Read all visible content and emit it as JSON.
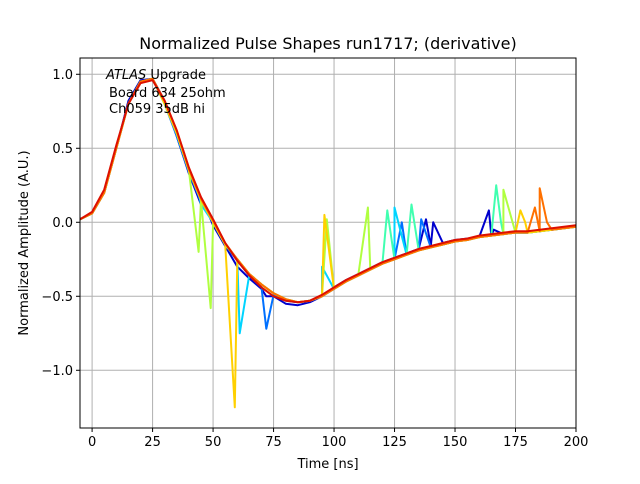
{
  "chart_data": {
    "type": "line",
    "title": "Normalized Pulse Shapes run1717; (derivative)",
    "xlabel": "Time [ns]",
    "ylabel": "Normalized Amplitude (A.U.)",
    "xlim": [
      -5,
      200
    ],
    "ylim": [
      -1.39,
      1.11
    ],
    "grid": true,
    "xticks": [
      0,
      25,
      50,
      75,
      100,
      125,
      150,
      175,
      200
    ],
    "xtick_labels": [
      "0",
      "25",
      "50",
      "75",
      "100",
      "125",
      "150",
      "175",
      "200"
    ],
    "yticks": [
      1.0,
      0.5,
      0.0,
      -0.5,
      -1.0
    ],
    "ytick_labels": [
      "1.0",
      "0.5",
      "0.0",
      "−0.5",
      "−1.0"
    ],
    "annotation": {
      "atlas": "ATLAS",
      "line1": " Upgrade",
      "line2": "Board 634 25ohm",
      "line3": "Ch059 35dB hi"
    },
    "x": [
      -5,
      0,
      5,
      10,
      15,
      20,
      25,
      30,
      35,
      40,
      45,
      50,
      55,
      60,
      65,
      70,
      75,
      80,
      85,
      90,
      95,
      100,
      105,
      110,
      115,
      120,
      125,
      130,
      135,
      140,
      145,
      150,
      155,
      160,
      165,
      170,
      175,
      180,
      185,
      190,
      195,
      200
    ],
    "series": [
      {
        "color": "#0000cd",
        "values": [
          0.02,
          0.06,
          0.2,
          0.5,
          0.82,
          0.96,
          0.97,
          0.82,
          0.58,
          0.33,
          0.12,
          -0.02,
          -0.16,
          -0.3,
          -0.38,
          -0.45,
          -0.5,
          -0.55,
          -0.56,
          -0.54,
          -0.5,
          -0.44,
          -0.39,
          -0.35,
          -0.31,
          -0.27,
          -0.24,
          -0.21,
          -0.18,
          -0.16,
          -0.14,
          -0.12,
          -0.11,
          -0.1,
          -0.09,
          -0.08,
          -0.07,
          -0.07,
          -0.06,
          -0.05,
          -0.04,
          -0.03
        ],
        "spikes": [
          [
            47,
            0.1
          ],
          [
            72,
            -0.5
          ],
          [
            138,
            0.02
          ],
          [
            141,
            0.0
          ],
          [
            164,
            0.08
          ],
          [
            166,
            -0.05
          ]
        ]
      },
      {
        "color": "#0070ff",
        "values": [
          0.02,
          0.06,
          0.2,
          0.5,
          0.8,
          0.95,
          0.97,
          0.8,
          0.58,
          0.34,
          0.14,
          0.0,
          -0.15,
          -0.26,
          -0.36,
          -0.44,
          -0.49,
          -0.53,
          -0.54,
          -0.53,
          -0.5,
          -0.45,
          -0.4,
          -0.36,
          -0.32,
          -0.28,
          -0.25,
          -0.22,
          -0.19,
          -0.17,
          -0.15,
          -0.13,
          -0.12,
          -0.1,
          -0.09,
          -0.08,
          -0.07,
          -0.07,
          -0.06,
          -0.05,
          -0.04,
          -0.03
        ],
        "spikes": [
          [
            72,
            -0.72
          ],
          [
            128,
            0.0
          ],
          [
            136,
            0.02
          ]
        ]
      },
      {
        "color": "#00d4ff",
        "values": [
          0.02,
          0.06,
          0.2,
          0.5,
          0.8,
          0.95,
          0.97,
          0.8,
          0.6,
          0.35,
          0.12,
          0.0,
          -0.15,
          -0.25,
          -0.35,
          -0.42,
          -0.48,
          -0.52,
          -0.54,
          -0.53,
          -0.5,
          -0.45,
          -0.4,
          -0.36,
          -0.32,
          -0.28,
          -0.25,
          -0.22,
          -0.19,
          -0.17,
          -0.15,
          -0.13,
          -0.12,
          -0.1,
          -0.09,
          -0.08,
          -0.07,
          -0.07,
          -0.06,
          -0.05,
          -0.04,
          -0.03
        ],
        "spikes": [
          [
            44,
            0.2
          ],
          [
            61,
            -0.75
          ],
          [
            95,
            -0.3
          ],
          [
            125,
            0.1
          ]
        ]
      },
      {
        "color": "#40ffb0",
        "values": [
          0.02,
          0.06,
          0.2,
          0.5,
          0.8,
          0.95,
          0.97,
          0.8,
          0.6,
          0.35,
          0.15,
          0.0,
          -0.15,
          -0.25,
          -0.35,
          -0.42,
          -0.48,
          -0.52,
          -0.54,
          -0.53,
          -0.5,
          -0.45,
          -0.4,
          -0.36,
          -0.32,
          -0.28,
          -0.25,
          -0.22,
          -0.19,
          -0.17,
          -0.15,
          -0.13,
          -0.12,
          -0.1,
          -0.09,
          -0.08,
          -0.07,
          -0.07,
          -0.06,
          -0.05,
          -0.04,
          -0.03
        ],
        "spikes": [
          [
            122,
            0.08
          ],
          [
            132,
            0.12
          ],
          [
            167,
            0.25
          ],
          [
            169,
            0.0
          ]
        ]
      },
      {
        "color": "#b0ff40",
        "values": [
          0.02,
          0.06,
          0.2,
          0.5,
          0.8,
          0.95,
          0.97,
          0.8,
          0.6,
          0.35,
          0.15,
          0.0,
          -0.15,
          -0.25,
          -0.35,
          -0.42,
          -0.48,
          -0.52,
          -0.54,
          -0.53,
          -0.5,
          -0.45,
          -0.4,
          -0.36,
          -0.32,
          -0.28,
          -0.25,
          -0.22,
          -0.19,
          -0.17,
          -0.15,
          -0.13,
          -0.12,
          -0.1,
          -0.09,
          -0.08,
          -0.07,
          -0.07,
          -0.06,
          -0.05,
          -0.04,
          -0.03
        ],
        "spikes": [
          [
            44,
            -0.2
          ],
          [
            49,
            -0.58
          ],
          [
            97,
            0.02
          ],
          [
            114,
            0.1
          ],
          [
            170,
            0.22
          ]
        ]
      },
      {
        "color": "#ffd000",
        "values": [
          0.02,
          0.06,
          0.2,
          0.5,
          0.8,
          0.95,
          0.97,
          0.8,
          0.6,
          0.35,
          0.15,
          0.0,
          -0.15,
          -0.25,
          -0.35,
          -0.42,
          -0.48,
          -0.52,
          -0.54,
          -0.53,
          -0.5,
          -0.45,
          -0.4,
          -0.36,
          -0.32,
          -0.28,
          -0.25,
          -0.22,
          -0.19,
          -0.17,
          -0.15,
          -0.13,
          -0.12,
          -0.1,
          -0.09,
          -0.08,
          -0.07,
          -0.07,
          -0.06,
          -0.05,
          -0.04,
          -0.03
        ],
        "spikes": [
          [
            59,
            -1.25
          ],
          [
            96,
            0.05
          ],
          [
            177,
            0.08
          ],
          [
            179,
            0.0
          ]
        ]
      },
      {
        "color": "#ff7000",
        "values": [
          0.02,
          0.06,
          0.2,
          0.5,
          0.8,
          0.95,
          0.97,
          0.82,
          0.62,
          0.36,
          0.16,
          0.01,
          -0.14,
          -0.25,
          -0.35,
          -0.42,
          -0.48,
          -0.52,
          -0.54,
          -0.53,
          -0.5,
          -0.45,
          -0.4,
          -0.36,
          -0.32,
          -0.28,
          -0.25,
          -0.22,
          -0.19,
          -0.17,
          -0.15,
          -0.13,
          -0.12,
          -0.1,
          -0.09,
          -0.08,
          -0.07,
          -0.07,
          -0.06,
          -0.05,
          -0.04,
          -0.03
        ],
        "spikes": [
          [
            183,
            0.1
          ],
          [
            185,
            0.23
          ],
          [
            188,
            0.0
          ]
        ]
      },
      {
        "color": "#dd1000",
        "values": [
          0.02,
          0.07,
          0.22,
          0.52,
          0.8,
          0.94,
          0.96,
          0.82,
          0.62,
          0.37,
          0.17,
          0.02,
          -0.14,
          -0.26,
          -0.36,
          -0.44,
          -0.5,
          -0.53,
          -0.54,
          -0.53,
          -0.49,
          -0.44,
          -0.39,
          -0.35,
          -0.31,
          -0.27,
          -0.24,
          -0.21,
          -0.18,
          -0.16,
          -0.14,
          -0.12,
          -0.11,
          -0.09,
          -0.08,
          -0.07,
          -0.06,
          -0.06,
          -0.05,
          -0.04,
          -0.03,
          -0.02
        ],
        "spikes": []
      }
    ]
  }
}
